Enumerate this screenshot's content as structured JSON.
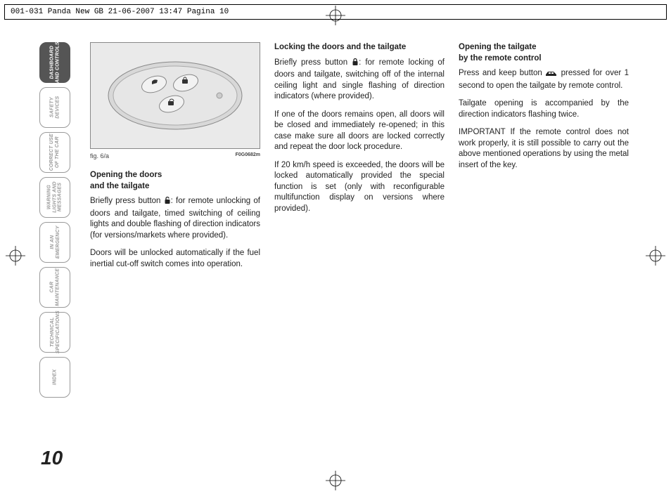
{
  "header": {
    "text": "001-031 Panda New GB  21-06-2007  13:47  Pagina 10"
  },
  "sidebar": {
    "tabs": [
      {
        "label": "DASHBOARD\nAND CONTROLS",
        "active": true
      },
      {
        "label": "SAFETY\nDEVICES",
        "active": false
      },
      {
        "label": "CORRECT USE\nOF THE CAR",
        "active": false
      },
      {
        "label": "WARNING\nLIGHTS AND\nMESSAGES",
        "active": false
      },
      {
        "label": "IN AN\nEMERGENCY",
        "active": false
      },
      {
        "label": "CAR\nMAINTENANCE",
        "active": false
      },
      {
        "label": "TECHNICAL\nSPECIFICATIONS",
        "active": false
      },
      {
        "label": "INDEX",
        "active": false
      }
    ]
  },
  "page_number": "10",
  "figure": {
    "caption_left": "fig. 6/a",
    "caption_right": "F0G0682m"
  },
  "col1": {
    "h1": "Opening the doors\nand the tailgate",
    "p1a": "Briefly press button ",
    "p1b": ": for remote unlocking of doors and tailgate, timed switching of ceiling lights and double flashing of direction indicators (for versions/markets where provided).",
    "p2": "Doors will be unlocked automatically if the fuel inertial cut-off switch comes into operation."
  },
  "col2": {
    "h1": "Locking the doors and the tailgate",
    "p1a": "Briefly press button ",
    "p1b": ": for remote locking of doors and tailgate, switching off of the internal ceiling light and single flashing of direction indicators (where provided).",
    "p2": "If one of the doors remains open, all doors will be closed and immediately re-opened; in this case make sure all doors are locked correctly and repeat the door lock procedure.",
    "p3": "If 20 km/h speed is exceeded, the doors will be locked automatically provided the special function is set (only with reconfigurable multifunction display on versions where provided)."
  },
  "col3": {
    "h1": "Opening the tailgate\nby the remote control",
    "p1a": "Press and keep button ",
    "p1b": " pressed for over 1 second to open the tailgate by remote control.",
    "p2": "Tailgate opening is accompanied by the direction indicators flashing twice.",
    "p3": "IMPORTANT If the remote control does not work properly, it is still possible to carry out the above mentioned operations by using the metal insert of the key."
  },
  "colors": {
    "tab_inactive_border": "#9a9a9a",
    "tab_inactive_text": "#9a9a9a",
    "tab_active_bg": "#555555",
    "tab_active_text": "#ffffff",
    "body_text": "#222222",
    "fig_bg": "#eaeaea"
  },
  "fonts": {
    "body_size_pt": 11.5,
    "header_family": "Courier New",
    "tab_style": "italic bold condensed"
  }
}
